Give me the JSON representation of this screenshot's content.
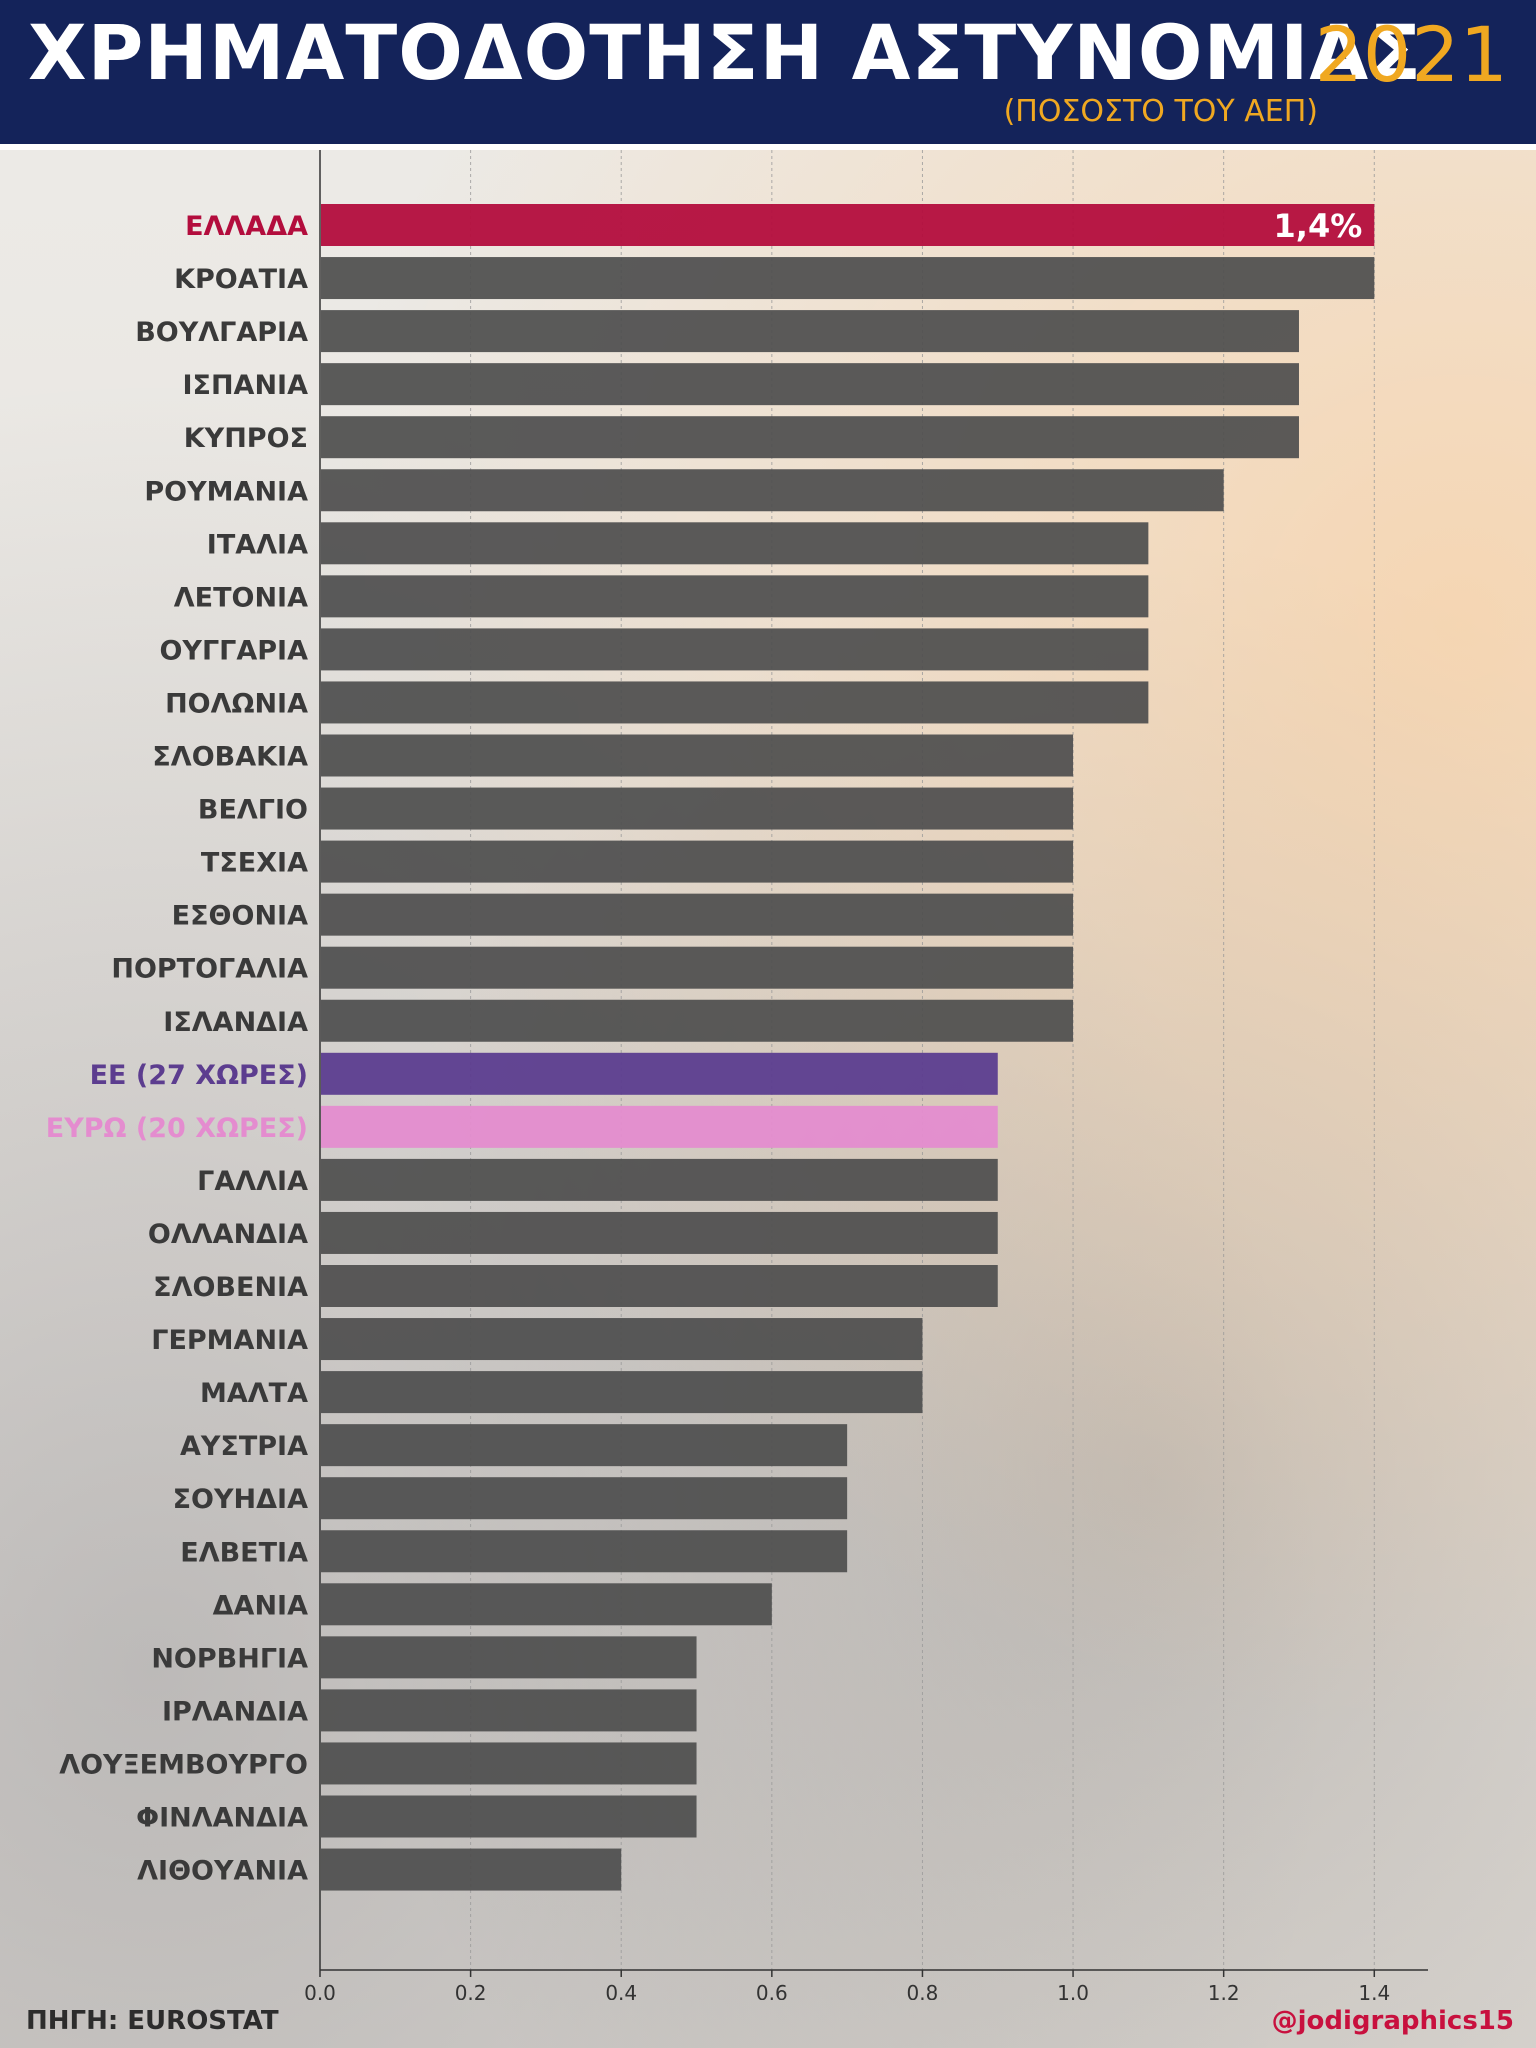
{
  "header": {
    "title": "ΧΡΗΜΑΤΟΔΟΤΗΣΗ ΑΣΤΥΝΟΜΙΑΣ",
    "year": "2021",
    "subtitle": "(ΠΟΣΟΣΤΟ ΤΟΥ ΑΕΠ)"
  },
  "footer": {
    "source": "ΠΗΓΗ: EUROSTAT",
    "credit": "@jodigraphics15"
  },
  "colors": {
    "header_bg": "#14235a",
    "accent_year": "#f0a821",
    "bar_default": "#4f4f4f",
    "bar_greece": "#b30d3d",
    "bar_eu27": "#5c3d8f",
    "bar_euro20": "#e48ccf",
    "label_default": "#3a3a3a"
  },
  "chart_data": {
    "type": "bar",
    "orientation": "horizontal",
    "categories": [
      "ΕΛΛΑΔΑ",
      "ΚΡΟΑΤΙΑ",
      "ΒΟΥΛΓΑΡΙΑ",
      "ΙΣΠΑΝΙΑ",
      "ΚΥΠΡΟΣ",
      "ΡΟΥΜΑΝΙΑ",
      "ΙΤΑΛΙΑ",
      "ΛΕΤΟΝΙΑ",
      "ΟΥΓΓΑΡΙΑ",
      "ΠΟΛΩΝΙΑ",
      "ΣΛΟΒΑΚΙΑ",
      "ΒΕΛΓΙΟ",
      "ΤΣΕΧΙΑ",
      "ΕΣΘΟΝΙΑ",
      "ΠΟΡΤΟΓΑΛΙΑ",
      "ΙΣΛΑΝΔΙΑ",
      "ΕΕ (27 ΧΩΡΕΣ)",
      "ΕΥΡΩ (20 ΧΩΡΕΣ)",
      "ΓΑΛΛΙΑ",
      "ΟΛΛΑΝΔΙΑ",
      "ΣΛΟΒΕΝΙΑ",
      "ΓΕΡΜΑΝΙΑ",
      "ΜΑΛΤΑ",
      "ΑΥΣΤΡΙΑ",
      "ΣΟΥΗΔΙΑ",
      "ΕΛΒΕΤΙΑ",
      "ΔΑΝΙΑ",
      "ΝΟΡΒΗΓΙΑ",
      "ΙΡΛΑΝΔΙΑ",
      "ΛΟΥΞΕΜΒΟΥΡΓΟ",
      "ΦΙΝΛΑΝΔΙΑ",
      "ΛΙΘΟΥΑΝΙΑ"
    ],
    "values": [
      1.4,
      1.4,
      1.3,
      1.3,
      1.3,
      1.2,
      1.1,
      1.1,
      1.1,
      1.1,
      1.0,
      1.0,
      1.0,
      1.0,
      1.0,
      1.0,
      0.9,
      0.9,
      0.9,
      0.9,
      0.9,
      0.8,
      0.8,
      0.7,
      0.7,
      0.7,
      0.6,
      0.5,
      0.5,
      0.5,
      0.5,
      0.4
    ],
    "highlights": {
      "ΕΛΛΑΔΑ": "greece",
      "ΕΕ (27 ΧΩΡΕΣ)": "eu27",
      "ΕΥΡΩ (20 ΧΩΡΕΣ)": "euro20"
    },
    "data_labels": [
      {
        "category": "ΕΛΛΑΔΑ",
        "text": "1,4%"
      }
    ],
    "xticks": [
      "0.0",
      "0.2",
      "0.4",
      "0.6",
      "0.8",
      "1.0",
      "1.2",
      "1.4"
    ],
    "xlim": [
      0,
      1.47
    ],
    "grid": true
  }
}
